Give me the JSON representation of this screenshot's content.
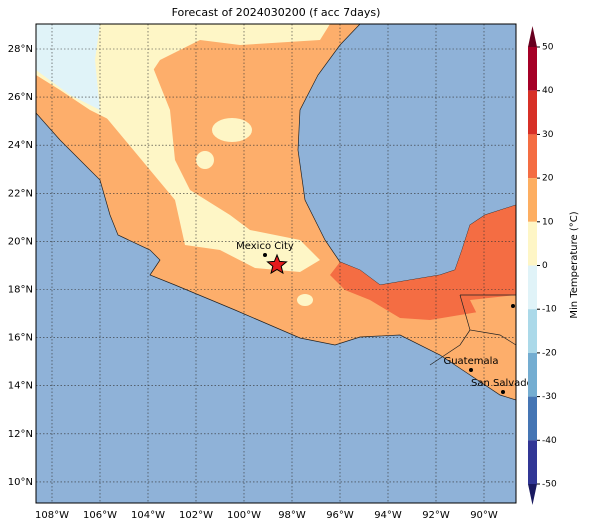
{
  "title": "Forecast of 2024030200 (f acc 7days)",
  "map": {
    "lat_labels": [
      "28°N",
      "26°N",
      "24°N",
      "22°N",
      "20°N",
      "18°N",
      "16°N",
      "14°N",
      "12°N",
      "10°N"
    ],
    "lon_labels": [
      "108°W",
      "106°W",
      "104°W",
      "102°W",
      "100°W",
      "98°W",
      "96°W",
      "94°W",
      "92°W",
      "90°W"
    ],
    "cities": [
      {
        "name": "Mexico City"
      },
      {
        "name": "Guatemala"
      },
      {
        "name": "San Salvador"
      }
    ]
  },
  "colorbar": {
    "label": "Min Temperature (°C)",
    "ticks": [
      50,
      40,
      30,
      20,
      10,
      0,
      -10,
      -20,
      -30,
      -40,
      -50
    ],
    "colors": [
      "#a50026",
      "#d73027",
      "#f46d43",
      "#fdae61",
      "#fef6c6",
      "#e0f3f8",
      "#abd9e9",
      "#74add1",
      "#4575b4",
      "#313695"
    ]
  }
}
